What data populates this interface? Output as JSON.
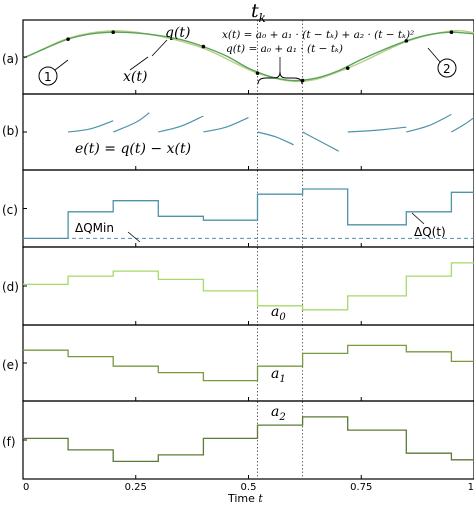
{
  "chart_data": {
    "type": "line",
    "x_tick_labels": [
      "0",
      "0.25",
      "0.5",
      "0.75",
      "1"
    ],
    "xlabel_prefix": "Time",
    "xlabel_var": "t",
    "xlim": [
      0,
      1
    ],
    "top_label": "t",
    "top_label_sub": "k",
    "guide_times": [
      0.52,
      0.62
    ],
    "colors": {
      "x": "#5aa45a",
      "q": "#b8d08a",
      "e": "#4f93a8",
      "dq": "#4f93a8",
      "a0": "#a6d96a",
      "a1": "#7a9a40",
      "a2": "#5b7a35"
    },
    "panels": [
      {
        "label": "(a)",
        "ylim": [
          -1.25,
          1.25
        ],
        "annotations": [
          "q(t)",
          "x(t)",
          "1",
          "2"
        ],
        "formula_x": "x(t) = a₀ + a₁ · (t − tₖ) + a₂ · (t − tₖ)²",
        "formula_q": "q(t) = a₀ + a₁ · (t − tₖ)",
        "series": {
          "x": [
            [
              0.0,
              -0.05
            ],
            [
              0.05,
              0.35
            ],
            [
              0.1,
              0.72
            ],
            [
              0.15,
              0.93
            ],
            [
              0.2,
              1.0
            ],
            [
              0.25,
              0.97
            ],
            [
              0.3,
              0.87
            ],
            [
              0.35,
              0.7
            ],
            [
              0.4,
              0.42
            ],
            [
              0.45,
              0.05
            ],
            [
              0.5,
              -0.45
            ],
            [
              0.55,
              -0.8
            ],
            [
              0.6,
              -0.95
            ],
            [
              0.65,
              -0.85
            ],
            [
              0.7,
              -0.55
            ],
            [
              0.75,
              -0.1
            ],
            [
              0.8,
              0.3
            ],
            [
              0.85,
              0.65
            ],
            [
              0.9,
              0.9
            ],
            [
              0.95,
              1.0
            ],
            [
              1.0,
              0.93
            ]
          ],
          "q": [
            [
              0.02,
              0.1
            ],
            [
              0.1,
              0.75
            ],
            [
              0.19,
              1.05
            ],
            [
              0.28,
              0.92
            ],
            [
              0.4,
              0.35
            ],
            [
              0.52,
              -0.65
            ],
            [
              0.62,
              -0.98
            ],
            [
              0.72,
              -0.45
            ],
            [
              0.85,
              0.62
            ],
            [
              0.95,
              1.05
            ],
            [
              1.0,
              0.98
            ]
          ]
        },
        "markers": [
          [
            0.1,
            0.72
          ],
          [
            0.2,
            1.0
          ],
          [
            0.4,
            0.42
          ],
          [
            0.52,
            -0.65
          ],
          [
            0.62,
            -0.95
          ],
          [
            0.72,
            -0.45
          ],
          [
            0.85,
            0.65
          ],
          [
            0.95,
            1.0
          ]
        ]
      },
      {
        "label": "(b)",
        "ylim": [
          -1,
          1
        ],
        "annotation": "e(t) = q(t) − x(t)",
        "segments": [
          [
            [
              0.1,
              0.0
            ],
            [
              0.15,
              0.1
            ],
            [
              0.2,
              0.35
            ]
          ],
          [
            [
              0.2,
              0.0
            ],
            [
              0.25,
              0.3
            ],
            [
              0.28,
              0.6
            ]
          ],
          [
            [
              0.3,
              0.0
            ],
            [
              0.35,
              0.18
            ],
            [
              0.4,
              0.5
            ]
          ],
          [
            [
              0.4,
              0.0
            ],
            [
              0.45,
              0.15
            ],
            [
              0.5,
              0.45
            ]
          ],
          [
            [
              0.52,
              0.0
            ],
            [
              0.56,
              -0.15
            ],
            [
              0.6,
              -0.4
            ]
          ],
          [
            [
              0.62,
              0.0
            ],
            [
              0.66,
              -0.3
            ],
            [
              0.7,
              -0.6
            ]
          ],
          [
            [
              0.72,
              0.0
            ],
            [
              0.78,
              0.05
            ],
            [
              0.85,
              0.15
            ]
          ],
          [
            [
              0.85,
              0.0
            ],
            [
              0.9,
              0.2
            ],
            [
              0.95,
              0.55
            ]
          ],
          [
            [
              0.95,
              0.0
            ],
            [
              0.98,
              0.25
            ],
            [
              1.0,
              0.45
            ]
          ]
        ]
      },
      {
        "label": "(c)",
        "ylim": [
          0,
          1
        ],
        "annotations": [
          "ΔQMin",
          "ΔQ(t)"
        ],
        "dq_min": 0.04,
        "dq_steps": [
          [
            0.0,
            0.04
          ],
          [
            0.1,
            0.45
          ],
          [
            0.2,
            0.62
          ],
          [
            0.3,
            0.38
          ],
          [
            0.4,
            0.32
          ],
          [
            0.52,
            0.72
          ],
          [
            0.62,
            0.8
          ],
          [
            0.72,
            0.25
          ],
          [
            0.85,
            0.45
          ],
          [
            0.95,
            0.75
          ],
          [
            1.0,
            0.75
          ]
        ]
      },
      {
        "label": "(d)",
        "ylim": [
          -1,
          1
        ],
        "annotation": "a",
        "annotation_sub": "0",
        "steps": [
          [
            0.0,
            0.05
          ],
          [
            0.1,
            0.3
          ],
          [
            0.2,
            0.45
          ],
          [
            0.3,
            0.2
          ],
          [
            0.4,
            -0.15
          ],
          [
            0.52,
            -0.6
          ],
          [
            0.62,
            -0.72
          ],
          [
            0.72,
            -0.3
          ],
          [
            0.85,
            0.3
          ],
          [
            0.95,
            0.7
          ],
          [
            1.0,
            0.7
          ]
        ]
      },
      {
        "label": "(e)",
        "ylim": [
          -1,
          1
        ],
        "annotation": "a",
        "annotation_sub": "1",
        "steps": [
          [
            0.0,
            0.4
          ],
          [
            0.1,
            0.2
          ],
          [
            0.2,
            -0.1
          ],
          [
            0.3,
            -0.3
          ],
          [
            0.4,
            -0.55
          ],
          [
            0.52,
            -0.1
          ],
          [
            0.62,
            0.3
          ],
          [
            0.72,
            0.55
          ],
          [
            0.85,
            0.35
          ],
          [
            0.95,
            0.05
          ],
          [
            1.0,
            0.05
          ]
        ]
      },
      {
        "label": "(f)",
        "ylim": [
          -1,
          1
        ],
        "annotation": "a",
        "annotation_sub": "2",
        "steps": [
          [
            0.0,
            0.05
          ],
          [
            0.1,
            -0.3
          ],
          [
            0.2,
            -0.65
          ],
          [
            0.3,
            -0.45
          ],
          [
            0.4,
            0.05
          ],
          [
            0.52,
            0.45
          ],
          [
            0.62,
            0.7
          ],
          [
            0.72,
            0.3
          ],
          [
            0.85,
            -0.4
          ],
          [
            0.95,
            -0.6
          ],
          [
            1.0,
            -0.6
          ]
        ]
      }
    ]
  }
}
